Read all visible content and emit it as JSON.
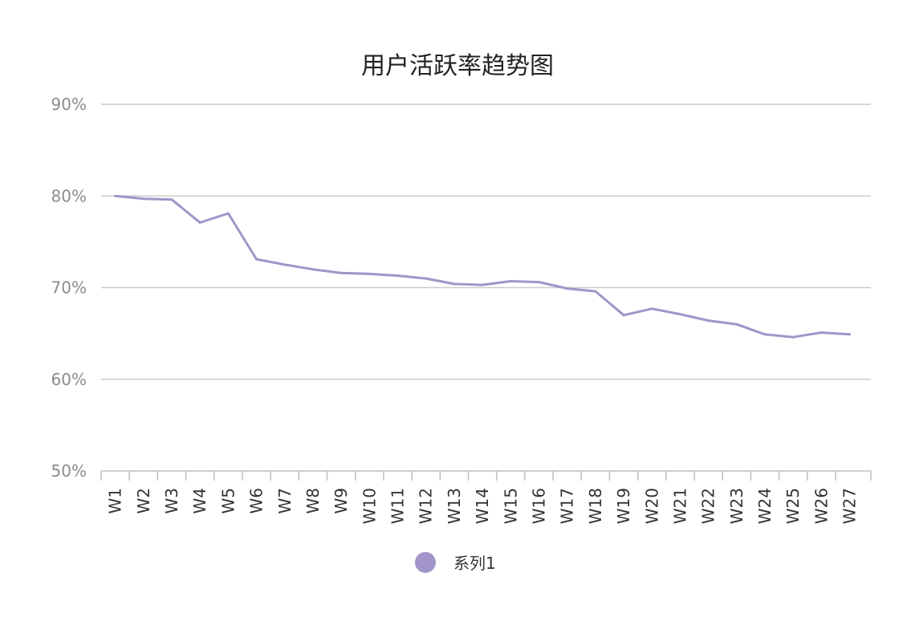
{
  "chart_data": {
    "type": "line",
    "title": "用户活跃率趋势图",
    "xlabel": "",
    "ylabel": "",
    "categories": [
      "W1",
      "W2",
      "W3",
      "W4",
      "W5",
      "W6",
      "W7",
      "W8",
      "W9",
      "W10",
      "W11",
      "W12",
      "W13",
      "W14",
      "W15",
      "W16",
      "W17",
      "W18",
      "W19",
      "W20",
      "W21",
      "W22",
      "W23",
      "W24",
      "W25",
      "W26",
      "W27"
    ],
    "series": [
      {
        "name": "系列1",
        "values": [
          0.8,
          0.797,
          0.796,
          0.771,
          0.781,
          0.731,
          0.725,
          0.72,
          0.716,
          0.715,
          0.713,
          0.71,
          0.704,
          0.703,
          0.707,
          0.706,
          0.699,
          0.696,
          0.67,
          0.677,
          0.671,
          0.664,
          0.66,
          0.649,
          0.646,
          0.651,
          0.649
        ],
        "color": "#a195c9"
      }
    ],
    "ylim": [
      0.5,
      0.9
    ],
    "yticks": [
      "50%",
      "60%",
      "70%",
      "80%",
      "90%"
    ],
    "ytick_values": [
      0.5,
      0.6,
      0.7,
      0.8,
      0.9
    ],
    "grid": true,
    "legend_position": "bottom",
    "colors": {
      "grid": "#cccccc",
      "axis": "#bfbfbf",
      "title": "#222222",
      "ytick": "#8c8c8c",
      "xtick": "#333333"
    }
  }
}
